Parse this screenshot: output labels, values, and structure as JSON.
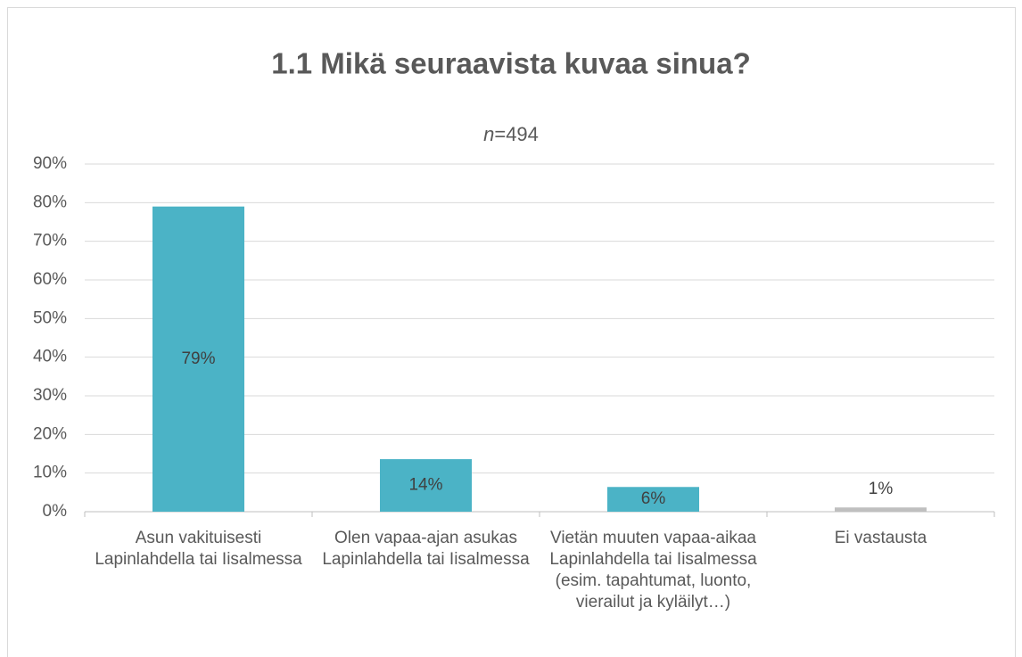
{
  "chart_data": {
    "type": "bar",
    "title": "1.1 Mikä seuraavista kuvaa sinua?",
    "subtitle": "n=494",
    "categories": [
      "Asun vakituisesti Lapinlahdella tai Iisalmessa",
      "Olen vapaa-ajan asukas Lapinlahdella tai Iisalmessa",
      "Vietän muuten vapaa-aikaa Lapinlahdella tai Iisalmessa (esim. tapahtumat, luonto, vierailut ja kyläilyt…)",
      "Ei vastausta"
    ],
    "values": [
      79,
      13.6,
      6.4,
      1.1
    ],
    "value_labels": [
      "79%",
      "14%",
      "6%",
      "1%"
    ],
    "colors": [
      "#4bb3c6",
      "#4bb3c6",
      "#4bb3c6",
      "#bfbfbf"
    ],
    "ylim": [
      0,
      90
    ],
    "yticks": [
      {
        "value": 0,
        "label": "0%"
      },
      {
        "value": 10,
        "label": "10%"
      },
      {
        "value": 20,
        "label": "20%"
      },
      {
        "value": 30,
        "label": "30%"
      },
      {
        "value": 40,
        "label": "40%"
      },
      {
        "value": 50,
        "label": "50%"
      },
      {
        "value": 60,
        "label": "60%"
      },
      {
        "value": 70,
        "label": "70%"
      },
      {
        "value": 80,
        "label": "80%"
      },
      {
        "value": 90,
        "label": "90%"
      }
    ],
    "grid": true
  }
}
